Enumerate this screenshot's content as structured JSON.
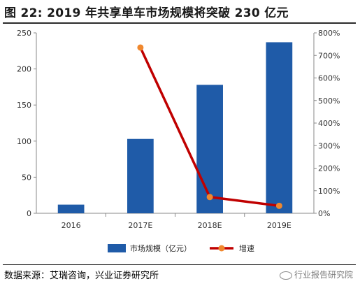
{
  "header": {
    "title": "图  22:  2019 年共享单车市场规模将突破 230 亿元"
  },
  "footer": {
    "source": "数据来源：艾瑞咨询，兴业证券研究所",
    "watermark": "行业报告研究院"
  },
  "chart_data": {
    "type": "bar",
    "categories": [
      "2016",
      "2017E",
      "2018E",
      "2019E"
    ],
    "series": [
      {
        "name": "市场规模（亿元）",
        "type": "bar",
        "axis": "left",
        "values": [
          12,
          103,
          178,
          237
        ],
        "color": "#1f5ba8"
      },
      {
        "name": "增速",
        "type": "line",
        "axis": "right",
        "values": [
          null,
          7.35,
          0.72,
          0.33
        ],
        "color": "#c00000",
        "marker_color": "#f0882e"
      }
    ],
    "y_left": {
      "ylim": [
        0,
        250
      ],
      "ticks": [
        "0",
        "50",
        "100",
        "150",
        "200",
        "250"
      ]
    },
    "y_right": {
      "ylim": [
        0,
        8
      ],
      "ticks": [
        "0%",
        "100%",
        "200%",
        "300%",
        "400%",
        "500%",
        "600%",
        "700%",
        "800%"
      ]
    },
    "legend_position": "bottom",
    "grid": false
  }
}
